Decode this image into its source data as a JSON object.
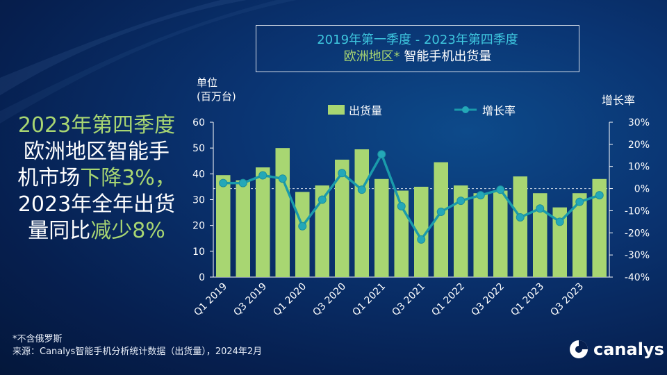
{
  "colors": {
    "bar": "#a8d672",
    "line": "#1a9bab",
    "marker": "#24a8b8",
    "accent_green": "#a8d672",
    "accent_cyan": "#3ec7df"
  },
  "header": {
    "title_line1": "2019年第一季度 - 2023年第四季度",
    "title_line2_region": "欧洲地区*",
    "title_line2_rest": "智能手机出货量"
  },
  "side": {
    "l1": "2023年第四季度",
    "l2": "欧洲地区智能手",
    "l3_a": "机市场",
    "l3_b": "下降3%，",
    "l4": "2023年全年出货",
    "l5_a": "量同比",
    "l5_b": "减少8%"
  },
  "axis_labels": {
    "unit_line1": "单位",
    "unit_line2": "(百万台)",
    "rate": "增长率"
  },
  "legend": {
    "bar": "出货量",
    "line": "增长率"
  },
  "footnotes": {
    "note": "*不含俄罗斯",
    "source": "来源：Canalys智能手机分析统计数据（出货量），2024年2月"
  },
  "logo": {
    "text": "canalys",
    "icon": "canalys-logo-icon"
  },
  "chart_data": {
    "type": "bar",
    "title": "2019年第一季度 - 2023年第四季度 欧洲地区* 智能手机出货量",
    "categories": [
      "Q1 2019",
      "Q2 2019",
      "Q3 2019",
      "Q4 2019",
      "Q1 2020",
      "Q2 2020",
      "Q3 2020",
      "Q4 2020",
      "Q1 2021",
      "Q2 2021",
      "Q3 2021",
      "Q4 2021",
      "Q1 2022",
      "Q2 2022",
      "Q3 2022",
      "Q4 2022",
      "Q1 2023",
      "Q2 2023",
      "Q3 2023",
      "Q4 2023"
    ],
    "tick_labels": [
      "Q1 2019",
      "Q3 2019",
      "Q1 2020",
      "Q3 2020",
      "Q1 2021",
      "Q3 2021",
      "Q1 2022",
      "Q3 2022",
      "Q1 2023",
      "Q3 2023"
    ],
    "series": [
      {
        "name": "出货量",
        "axis": "left",
        "values": [
          39.5,
          37.5,
          42.5,
          50,
          33,
          35.5,
          45.5,
          49.5,
          38,
          33.5,
          35,
          44.5,
          35.5,
          32.5,
          33.5,
          39,
          32.5,
          27,
          32.5,
          38
        ]
      },
      {
        "name": "增长率",
        "axis": "right",
        "type": "line",
        "values": [
          2.5,
          2.5,
          6,
          4.5,
          -17,
          -5,
          7,
          -0.5,
          15.5,
          -8,
          -23,
          -10.5,
          -5.5,
          -3,
          -0.5,
          -13,
          -9,
          -15,
          -6,
          -3
        ]
      }
    ],
    "ylabel": "单位 (百万台)",
    "y2label": "增长率",
    "ylim": [
      0,
      60
    ],
    "yticks": [
      "0",
      "10",
      "20",
      "30",
      "40",
      "50",
      "60"
    ],
    "y2lim": [
      -40,
      30
    ],
    "y2ticks": [
      "-40%",
      "-30%",
      "-20%",
      "-10%",
      "0%",
      "10%",
      "20%",
      "30%"
    ]
  }
}
